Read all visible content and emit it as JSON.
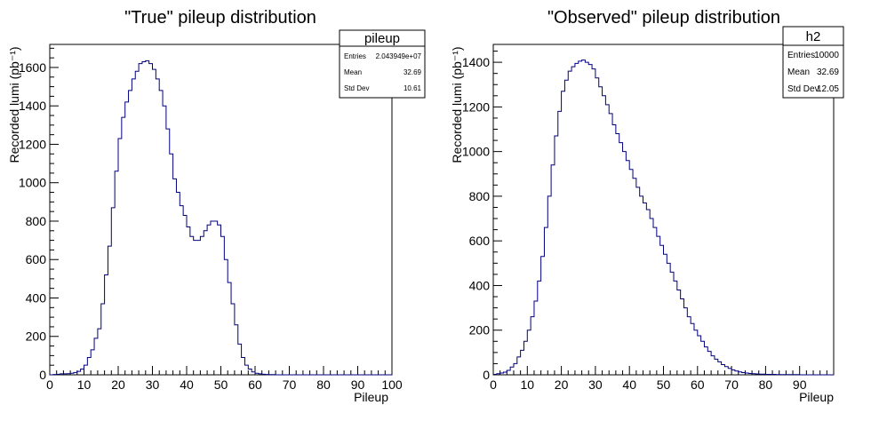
{
  "chart_data": [
    {
      "type": "histogram",
      "title": "\"True\" pileup distribution",
      "xlabel": "Pileup",
      "ylabel": "Recorded lumi (pb⁻¹)",
      "xlim": [
        0,
        100
      ],
      "ylim": [
        0,
        1720
      ],
      "bin_width": 1,
      "x_ticks": [
        0,
        10,
        20,
        30,
        40,
        50,
        60,
        70,
        80,
        90,
        100
      ],
      "y_ticks": [
        0,
        200,
        400,
        600,
        800,
        1000,
        1200,
        1400,
        1600
      ],
      "stats_box": {
        "name": "pileup",
        "rows": [
          {
            "key": "Entries",
            "value": "2.043949e+07"
          },
          {
            "key": "Mean",
            "value": "32.69"
          },
          {
            "key": "Std Dev",
            "value": "10.61"
          }
        ]
      },
      "color": "#00007f",
      "values": [
        0,
        2,
        3,
        5,
        5,
        6,
        8,
        12,
        18,
        30,
        50,
        90,
        130,
        190,
        240,
        370,
        520,
        670,
        870,
        1060,
        1230,
        1340,
        1420,
        1480,
        1540,
        1580,
        1620,
        1630,
        1635,
        1620,
        1590,
        1540,
        1480,
        1400,
        1280,
        1150,
        1020,
        950,
        880,
        830,
        770,
        720,
        700,
        700,
        720,
        750,
        780,
        800,
        800,
        780,
        720,
        600,
        480,
        370,
        260,
        160,
        90,
        50,
        30,
        15,
        8,
        5,
        3,
        2,
        1,
        1,
        0,
        0,
        0,
        0,
        0,
        0,
        0,
        0,
        0,
        0,
        0,
        0,
        0,
        0,
        0,
        0,
        0,
        0,
        0,
        0,
        0,
        0,
        0,
        0,
        0,
        0,
        0,
        0,
        0,
        0,
        0,
        0,
        0,
        0
      ]
    },
    {
      "type": "histogram",
      "title": "\"Observed\" pileup distribution",
      "xlabel": "Pileup",
      "ylabel": "Recorded lumi (pb⁻¹)",
      "xlim": [
        0,
        100
      ],
      "ylim": [
        0,
        1480
      ],
      "bin_width": 1,
      "x_ticks": [
        0,
        10,
        20,
        30,
        40,
        50,
        60,
        70,
        80,
        90
      ],
      "y_ticks": [
        0,
        200,
        400,
        600,
        800,
        1000,
        1200,
        1400
      ],
      "stats_box": {
        "name": "h2",
        "rows": [
          {
            "key": "Entries",
            "value": "10000"
          },
          {
            "key": "Mean",
            "value": "32.69"
          },
          {
            "key": "Std Dev",
            "value": "12.05"
          }
        ]
      },
      "color": "#00007f",
      "values": [
        2,
        5,
        8,
        12,
        20,
        35,
        50,
        80,
        110,
        150,
        200,
        260,
        330,
        420,
        530,
        660,
        800,
        940,
        1070,
        1180,
        1270,
        1320,
        1360,
        1380,
        1395,
        1405,
        1410,
        1400,
        1390,
        1370,
        1330,
        1290,
        1250,
        1210,
        1170,
        1120,
        1080,
        1040,
        1000,
        960,
        920,
        880,
        840,
        800,
        770,
        740,
        700,
        660,
        620,
        580,
        540,
        500,
        460,
        420,
        380,
        340,
        300,
        260,
        230,
        200,
        175,
        150,
        125,
        105,
        85,
        70,
        58,
        46,
        37,
        29,
        22,
        17,
        13,
        10,
        8,
        6,
        5,
        4,
        3,
        3,
        2,
        2,
        2,
        1,
        1,
        1,
        1,
        1,
        1,
        1,
        0,
        0,
        0,
        0,
        0,
        0,
        0,
        0,
        0,
        0
      ]
    }
  ]
}
